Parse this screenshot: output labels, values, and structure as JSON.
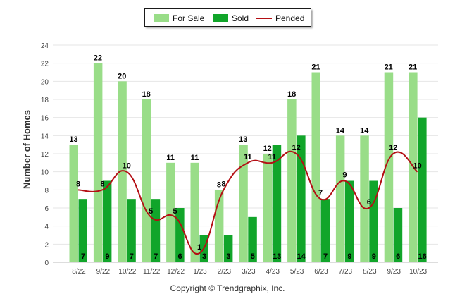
{
  "chart_data": {
    "type": "bar",
    "ylabel": "Number of Homes",
    "xlabel": "",
    "ylim": [
      0,
      24
    ],
    "yticks": [
      0,
      2,
      4,
      6,
      8,
      10,
      12,
      14,
      16,
      18,
      20,
      22,
      24
    ],
    "categories": [
      "8/22",
      "9/22",
      "10/22",
      "11/22",
      "12/22",
      "1/23",
      "2/23",
      "3/23",
      "4/23",
      "5/23",
      "6/23",
      "7/23",
      "8/23",
      "9/23",
      "10/23"
    ],
    "series": [
      {
        "name": "For Sale",
        "type": "bar",
        "color": "#99dd88",
        "values": [
          13,
          22,
          20,
          18,
          11,
          11,
          8,
          13,
          12,
          18,
          21,
          14,
          14,
          21,
          21
        ]
      },
      {
        "name": "Sold",
        "type": "bar",
        "color": "#11a52a",
        "values": [
          7,
          9,
          7,
          7,
          6,
          3,
          3,
          5,
          13,
          14,
          7,
          9,
          9,
          6,
          16
        ]
      },
      {
        "name": "Pended",
        "type": "line",
        "color": "#b40f14",
        "values": [
          8,
          8,
          10,
          5,
          5,
          1,
          8,
          11,
          11,
          12,
          7,
          9,
          6,
          12,
          10
        ]
      }
    ],
    "grid": true,
    "legend_position": "top-center"
  },
  "legend": {
    "for_sale": "For Sale",
    "sold": "Sold",
    "pended": "Pended"
  },
  "copyright": "Copyright © Trendgraphix, Inc."
}
